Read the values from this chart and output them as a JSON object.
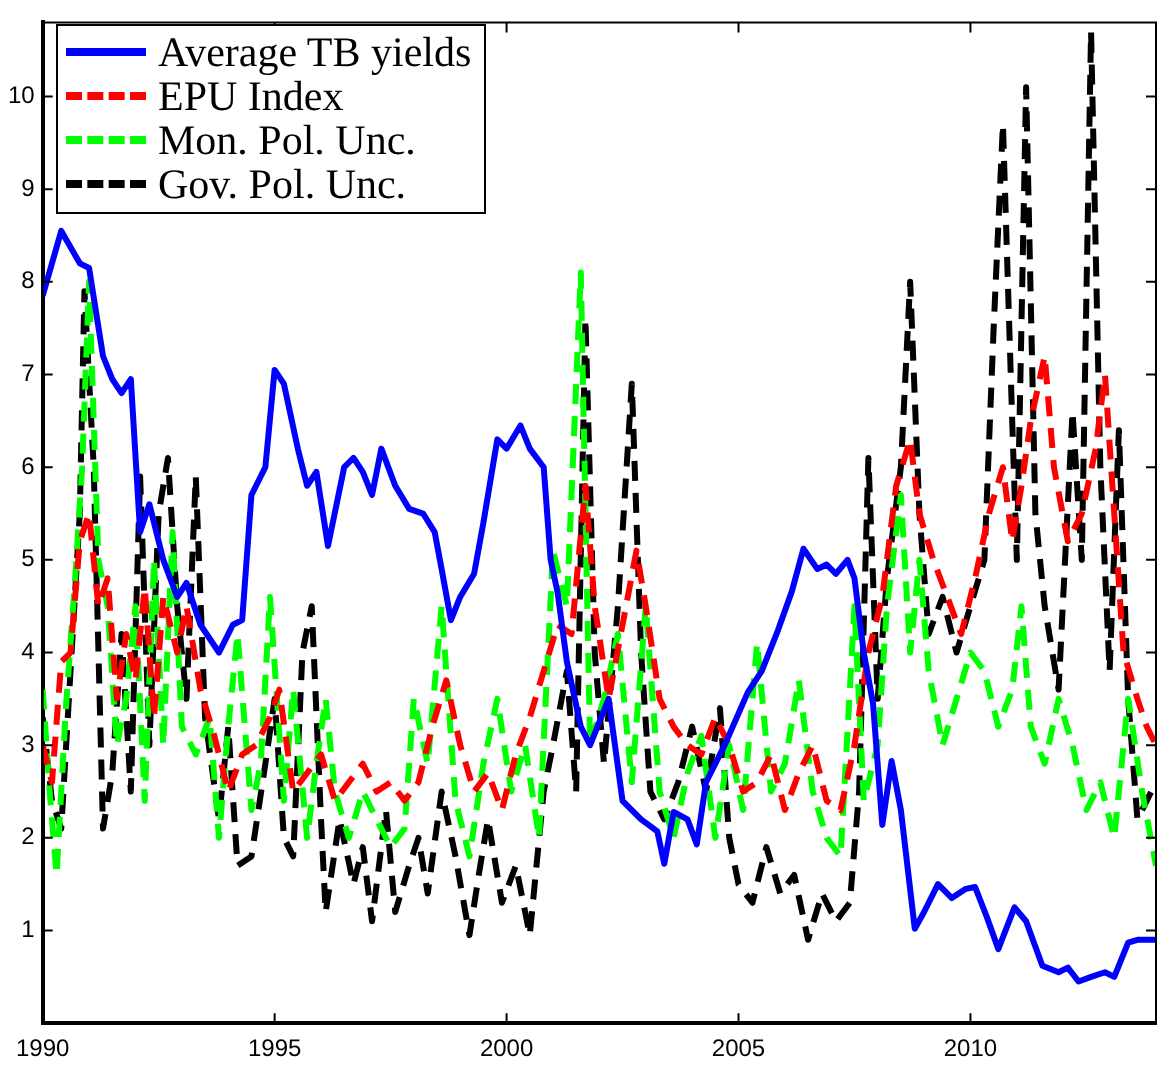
{
  "chart_data": {
    "type": "line",
    "xlim": [
      1990,
      2014
    ],
    "ylim": [
      0,
      10.8
    ],
    "xticks": [
      1990,
      1995,
      2000,
      2005,
      2010
    ],
    "yticks": [
      1,
      2,
      3,
      4,
      5,
      6,
      7,
      8,
      9,
      10
    ],
    "legend": "top left",
    "series": [
      {
        "name": "Average TB yields",
        "color": "#0000ff",
        "line_style": "solid",
        "x": [
          1990,
          1990.4,
          1990.8,
          1991.0,
          1991.3,
          1991.5,
          1991.7,
          1991.9,
          1992.1,
          1992.3,
          1992.6,
          1992.9,
          1993.1,
          1993.4,
          1993.8,
          1994.1,
          1994.3,
          1994.5,
          1994.8,
          1995.0,
          1995.2,
          1995.5,
          1995.7,
          1995.9,
          1996.15,
          1996.5,
          1996.7,
          1996.9,
          1997.1,
          1997.3,
          1997.6,
          1997.9,
          1998.2,
          1998.45,
          1998.6,
          1998.8,
          1999.0,
          1999.3,
          1999.5,
          1999.8,
          2000.0,
          2000.3,
          2000.5,
          2000.8,
          2000.95,
          2001.1,
          2001.3,
          2001.6,
          2001.8,
          2002.2,
          2002.5,
          2002.9,
          2003.25,
          2003.4,
          2003.6,
          2003.9,
          2004.1,
          2004.3,
          2004.7,
          2005.2,
          2005.5,
          2005.85,
          2006.15,
          2006.4,
          2006.7,
          2006.9,
          2007.1,
          2007.35,
          2007.5,
          2007.7,
          2007.9,
          2008.1,
          2008.3,
          2008.5,
          2008.8,
          2009.0,
          2009.3,
          2009.6,
          2009.9,
          2010.1,
          2010.35,
          2010.6,
          2010.95,
          2011.2,
          2011.55,
          2011.9,
          2012.1,
          2012.33,
          2012.6,
          2012.9,
          2013.1,
          2013.4,
          2013.6,
          2014
        ],
        "values": [
          7.85,
          8.55,
          8.2,
          8.15,
          7.2,
          6.95,
          6.8,
          6.95,
          5.3,
          5.6,
          5.0,
          4.6,
          4.75,
          4.3,
          4.0,
          4.3,
          4.35,
          5.7,
          6.0,
          7.05,
          6.9,
          6.2,
          5.8,
          5.95,
          5.15,
          6.0,
          6.1,
          5.95,
          5.7,
          6.2,
          5.8,
          5.55,
          5.5,
          5.3,
          4.9,
          4.35,
          4.6,
          4.85,
          5.4,
          6.3,
          6.2,
          6.45,
          6.2,
          6.0,
          5.0,
          4.65,
          3.9,
          3.2,
          3.0,
          3.5,
          2.4,
          2.2,
          2.07,
          1.72,
          2.28,
          2.2,
          1.93,
          2.6,
          3.0,
          3.57,
          3.8,
          4.24,
          4.66,
          5.12,
          4.9,
          4.95,
          4.85,
          5.0,
          4.8,
          4.0,
          3.45,
          2.14,
          2.83,
          2.3,
          1.02,
          1.2,
          1.5,
          1.35,
          1.45,
          1.47,
          1.15,
          0.8,
          1.25,
          1.1,
          0.62,
          0.55,
          0.6,
          0.45,
          0.5,
          0.55,
          0.5,
          0.87,
          0.9,
          0.9
        ]
      },
      {
        "name": "EPU Index",
        "color": "#ff0000",
        "line_style": "dashed",
        "x": [
          1990,
          1990.2,
          1990.4,
          1990.6,
          1990.8,
          1991.0,
          1991.2,
          1991.4,
          1991.6,
          1991.8,
          1992.0,
          1992.2,
          1992.4,
          1992.6,
          1992.9,
          1993.1,
          1993.4,
          1993.7,
          1994.0,
          1994.3,
          1994.6,
          1994.9,
          1995.1,
          1995.4,
          1995.7,
          1996.0,
          1996.3,
          1996.6,
          1996.9,
          1997.2,
          1997.5,
          1997.8,
          1998.1,
          1998.4,
          1998.7,
          1999.0,
          1999.3,
          1999.6,
          1999.9,
          2000.2,
          2000.5,
          2000.8,
          2001.1,
          2001.4,
          2001.7,
          2001.9,
          2002.2,
          2002.5,
          2002.8,
          2003.0,
          2003.3,
          2003.6,
          2003.9,
          2004.2,
          2004.5,
          2004.8,
          2005.1,
          2005.4,
          2005.7,
          2006.0,
          2006.3,
          2006.6,
          2006.9,
          2007.2,
          2007.5,
          2007.8,
          2008.1,
          2008.4,
          2008.7,
          2008.9,
          2009.2,
          2009.5,
          2009.8,
          2010.1,
          2010.4,
          2010.7,
          2010.9,
          2011.1,
          2011.3,
          2011.6,
          2011.8,
          2012.1,
          2012.4,
          2012.7,
          2012.9,
          2013.1,
          2013.3,
          2013.6,
          2013.8,
          2014
        ],
        "values": [
          3.0,
          2.6,
          3.9,
          4.0,
          5.2,
          5.5,
          4.5,
          4.8,
          3.5,
          4.2,
          3.7,
          4.7,
          3.3,
          4.6,
          4.0,
          4.5,
          3.6,
          3.1,
          2.5,
          2.9,
          3.0,
          3.3,
          3.6,
          2.5,
          2.7,
          2.9,
          2.4,
          2.6,
          2.8,
          2.5,
          2.6,
          2.4,
          2.6,
          3.2,
          3.7,
          3.0,
          2.5,
          2.7,
          2.3,
          2.9,
          3.3,
          3.8,
          4.3,
          4.2,
          5.8,
          4.5,
          3.5,
          4.3,
          5.1,
          4.5,
          3.5,
          3.2,
          3.0,
          2.9,
          3.3,
          3.0,
          2.5,
          2.6,
          2.9,
          2.3,
          2.7,
          3.0,
          2.4,
          2.3,
          3.0,
          4.0,
          4.6,
          5.8,
          6.3,
          5.5,
          5.0,
          4.6,
          4.2,
          4.8,
          5.5,
          6.0,
          5.2,
          5.8,
          6.5,
          7.2,
          6.0,
          5.2,
          5.5,
          6.2,
          7.0,
          5.5,
          4.0,
          3.5,
          3.2,
          3.0
        ]
      },
      {
        "name": "Mon. Pol. Unc.",
        "color": "#00ff00",
        "line_style": "dashed",
        "x": [
          1990,
          1990.15,
          1990.3,
          1990.5,
          1990.7,
          1990.85,
          1991.0,
          1991.2,
          1991.4,
          1991.6,
          1991.8,
          1992.0,
          1992.2,
          1992.4,
          1992.6,
          1992.8,
          1993.0,
          1993.3,
          1993.6,
          1993.8,
          1994.0,
          1994.2,
          1994.5,
          1994.7,
          1994.9,
          1995.2,
          1995.4,
          1995.7,
          1995.9,
          1996.1,
          1996.3,
          1996.6,
          1996.9,
          1997.2,
          1997.5,
          1997.8,
          1998.0,
          1998.3,
          1998.6,
          1998.9,
          1999.2,
          1999.5,
          1999.8,
          2000.1,
          2000.4,
          2000.7,
          2001.0,
          2001.3,
          2001.6,
          2001.8,
          2002.1,
          2002.4,
          2002.7,
          2003.0,
          2003.3,
          2003.6,
          2003.9,
          2004.2,
          2004.5,
          2004.8,
          2005.1,
          2005.4,
          2005.7,
          2006.0,
          2006.3,
          2006.6,
          2006.9,
          2007.2,
          2007.5,
          2007.7,
          2008.0,
          2008.2,
          2008.5,
          2008.7,
          2008.9,
          2009.1,
          2009.4,
          2009.7,
          2010.0,
          2010.3,
          2010.6,
          2010.9,
          2011.1,
          2011.3,
          2011.6,
          2011.9,
          2012.2,
          2012.5,
          2012.8,
          2013.1,
          2013.4,
          2013.7,
          2014
        ],
        "values": [
          3.6,
          2.5,
          1.6,
          3.4,
          4.8,
          6.0,
          8.0,
          5.0,
          4.5,
          3.0,
          3.5,
          4.5,
          2.4,
          5.0,
          3.0,
          5.3,
          3.2,
          2.9,
          3.3,
          2.0,
          3.2,
          4.2,
          2.3,
          2.8,
          4.6,
          2.4,
          3.6,
          2.0,
          2.8,
          3.5,
          2.5,
          2.0,
          2.5,
          2.2,
          1.9,
          2.1,
          3.5,
          2.8,
          4.5,
          2.4,
          1.8,
          2.8,
          3.5,
          2.5,
          3.0,
          2.0,
          5.1,
          4.5,
          8.1,
          3.0,
          3.5,
          4.2,
          2.6,
          4.5,
          2.5,
          2.0,
          2.7,
          3.1,
          2.0,
          3.0,
          2.3,
          4.1,
          2.5,
          2.8,
          3.7,
          2.5,
          2.0,
          1.8,
          4.5,
          2.4,
          3.0,
          4.5,
          5.7,
          4.0,
          5.0,
          3.8,
          3.0,
          3.5,
          4.0,
          3.8,
          3.2,
          3.6,
          4.5,
          3.2,
          2.8,
          3.5,
          3.0,
          2.3,
          2.6,
          2.0,
          3.5,
          2.5,
          1.7
        ]
      },
      {
        "name": "Gov. Pol. Unc.",
        "color": "#000000",
        "line_style": "dashed",
        "x": [
          1990,
          1990.2,
          1990.4,
          1990.6,
          1990.8,
          1990.9,
          1991.1,
          1991.3,
          1991.5,
          1991.7,
          1991.9,
          1992.1,
          1992.3,
          1992.5,
          1992.7,
          1992.9,
          1993.1,
          1993.3,
          1993.5,
          1993.8,
          1994.0,
          1994.2,
          1994.5,
          1994.8,
          1995.0,
          1995.2,
          1995.4,
          1995.6,
          1995.8,
          1996.0,
          1996.1,
          1996.4,
          1996.7,
          1996.9,
          1997.1,
          1997.4,
          1997.6,
          1997.9,
          1998.1,
          1998.3,
          1998.6,
          1998.9,
          1999.2,
          1999.4,
          1999.6,
          1999.9,
          2000.2,
          2000.5,
          2000.8,
          2001.0,
          2001.3,
          2001.5,
          2001.7,
          2001.9,
          2002.1,
          2002.4,
          2002.7,
          2002.9,
          2003.1,
          2003.4,
          2003.7,
          2004.0,
          2004.3,
          2004.6,
          2004.8,
          2005.0,
          2005.3,
          2005.6,
          2005.9,
          2006.2,
          2006.5,
          2006.8,
          2007.1,
          2007.4,
          2007.6,
          2007.8,
          2008.0,
          2008.2,
          2008.5,
          2008.7,
          2008.9,
          2009.1,
          2009.4,
          2009.7,
          2010.0,
          2010.3,
          2010.5,
          2010.7,
          2010.9,
          2011.0,
          2011.2,
          2011.4,
          2011.6,
          2011.9,
          2012.2,
          2012.4,
          2012.6,
          2012.8,
          2013.0,
          2013.2,
          2013.4,
          2013.6,
          2014
        ],
        "values": [
          3.3,
          2.4,
          2.1,
          3.8,
          5.5,
          7.9,
          6.0,
          2.1,
          2.7,
          4.2,
          2.5,
          5.9,
          3.0,
          5.5,
          6.1,
          4.5,
          3.5,
          5.9,
          3.3,
          2.2,
          3.2,
          1.7,
          1.8,
          2.8,
          3.5,
          2.0,
          1.8,
          4.0,
          4.5,
          2.2,
          1.2,
          2.2,
          1.5,
          1.9,
          1.1,
          2.3,
          1.2,
          1.7,
          2.0,
          1.4,
          2.5,
          1.8,
          0.95,
          1.6,
          2.2,
          1.3,
          1.7,
          0.95,
          2.5,
          3.0,
          3.8,
          2.5,
          7.6,
          4.0,
          2.8,
          4.5,
          6.9,
          4.0,
          2.5,
          2.2,
          2.6,
          3.2,
          2.5,
          3.4,
          2.0,
          1.5,
          1.3,
          1.9,
          1.4,
          1.6,
          0.9,
          1.4,
          1.1,
          1.3,
          2.5,
          6.1,
          3.5,
          4.8,
          6.0,
          8.0,
          5.5,
          4.2,
          4.6,
          4.0,
          4.5,
          5.0,
          7.5,
          9.7,
          6.5,
          5.0,
          10.1,
          5.5,
          4.5,
          3.6,
          6.6,
          5.0,
          10.7,
          6.0,
          3.8,
          6.4,
          3.5,
          2.2,
          2.6
        ]
      }
    ]
  }
}
